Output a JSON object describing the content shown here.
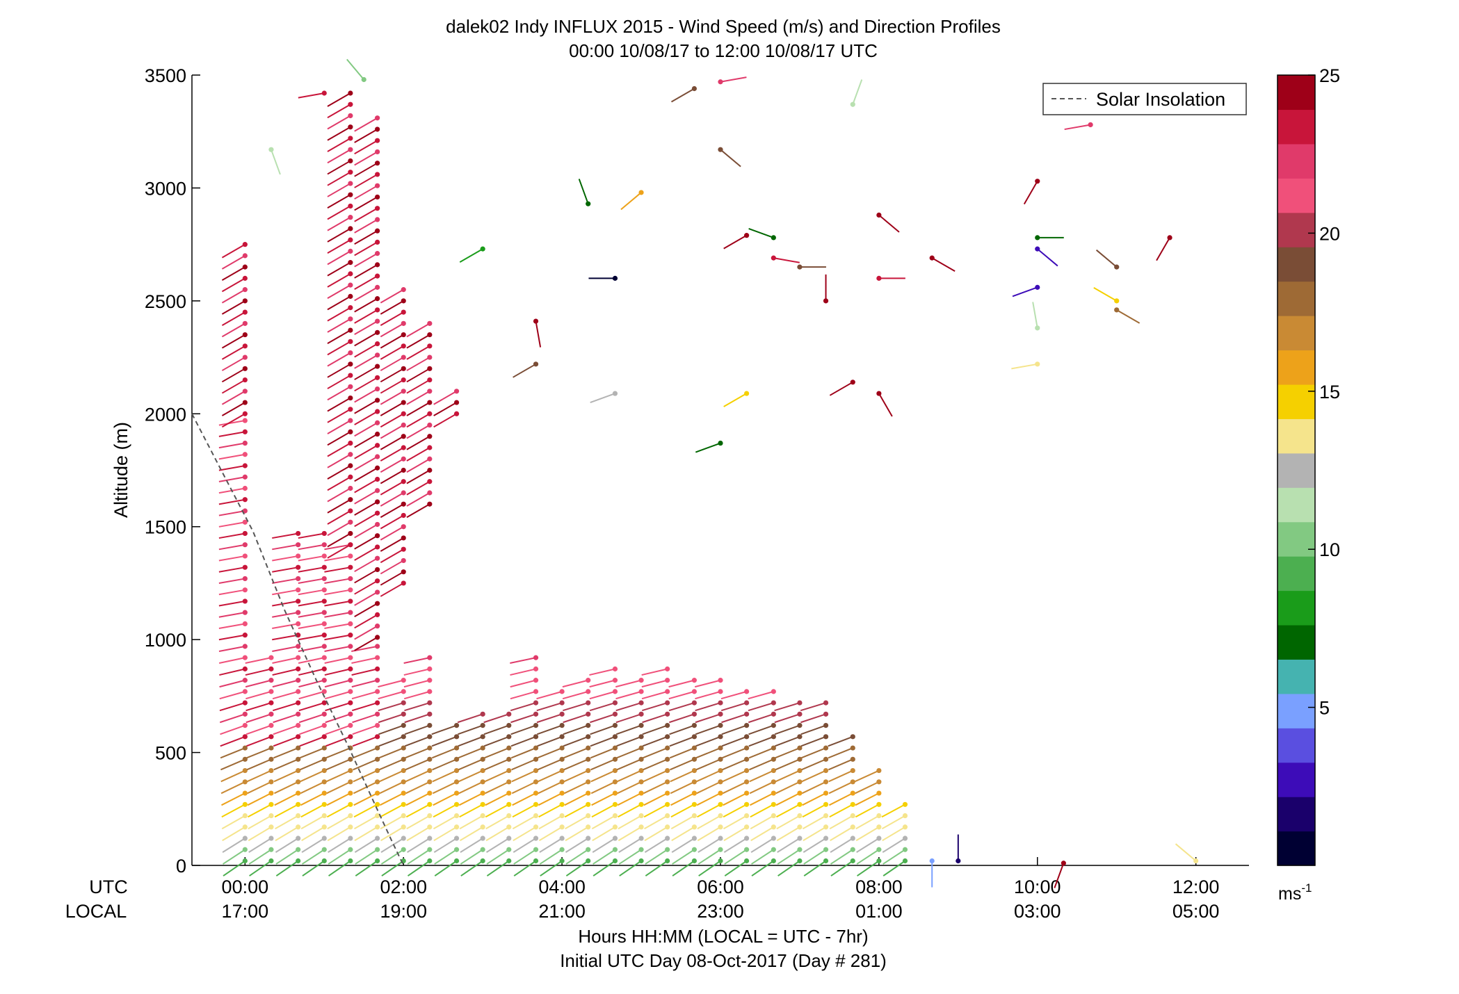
{
  "chart_data": {
    "type": "scatter",
    "title": "dalek02 Indy INFLUX 2015 - Wind Speed (m/s) and Direction Profiles",
    "subtitle": "00:00 10/08/17 to 12:00 10/08/17  UTC",
    "ylabel": "Altitude (m)",
    "xlabel": "Hours HH:MM  (LOCAL = UTC - 7hr)",
    "xlabel2": "Initial UTC Day 08-Oct-2017 (Day # 281)",
    "xlim": [
      -0.67,
      12.67
    ],
    "ylim": [
      0,
      3500
    ],
    "yticks": [
      0,
      500,
      1000,
      1500,
      2000,
      2500,
      3000,
      3500
    ],
    "xticks": [
      0,
      2,
      4,
      6,
      8,
      10,
      12
    ],
    "xtick_labels_utc": [
      "00:00",
      "02:00",
      "04:00",
      "06:00",
      "08:00",
      "10:00",
      "12:00"
    ],
    "xtick_labels_local": [
      "17:00",
      "19:00",
      "21:00",
      "23:00",
      "01:00",
      "03:00",
      "05:00"
    ],
    "row_label_utc": "UTC",
    "row_label_local": "LOCAL",
    "legend": {
      "entry": "Solar Insolation",
      "placement": "top-right"
    },
    "colorbar": {
      "range": [
        0,
        25
      ],
      "ticks": [
        5,
        10,
        15,
        20,
        25
      ],
      "unit_base": "ms",
      "unit_exp": "-1",
      "colors": [
        "#000033",
        "#1a006b",
        "#3d0cb8",
        "#5a4fe0",
        "#7aa0ff",
        "#45b3b0",
        "#006600",
        "#1a9c1a",
        "#4caf50",
        "#82c982",
        "#b8e0b0",
        "#b3b3b3",
        "#f5e48c",
        "#f5d000",
        "#eda21a",
        "#c98a34",
        "#9e6a35",
        "#7a4d36",
        "#b0384e",
        "#f0507a",
        "#e03a6a",
        "#c8153a",
        "#9e0018"
      ]
    },
    "solar_insolation": {
      "color": "#555555",
      "points": [
        [
          -0.67,
          2000
        ],
        [
          -0.3,
          1750
        ],
        [
          0.1,
          1480
        ],
        [
          0.5,
          1130
        ],
        [
          0.9,
          820
        ],
        [
          1.3,
          530
        ],
        [
          1.6,
          300
        ],
        [
          1.85,
          110
        ],
        [
          2.0,
          0
        ]
      ]
    },
    "profiles": [
      {
        "t": 0.0,
        "top": 2000,
        "step": 50,
        "band": "upper"
      },
      {
        "t": 0.33,
        "top": 930,
        "step": 50
      },
      {
        "t": 0.67,
        "top": 1470,
        "step": 50
      },
      {
        "t": 1.0,
        "top": 1470,
        "step": 50
      },
      {
        "t": 1.33,
        "top": 1420,
        "step": 50
      },
      {
        "t": 1.67,
        "top": 1010,
        "step": 50
      },
      {
        "t": 2.0,
        "top": 830,
        "step": 50
      },
      {
        "t": 2.33,
        "top": 960,
        "step": 50
      },
      {
        "t": 2.67,
        "top": 660,
        "step": 50
      },
      {
        "t": 3.0,
        "top": 690,
        "step": 50
      },
      {
        "t": 3.33,
        "top": 690,
        "step": 50
      },
      {
        "t": 3.67,
        "top": 930,
        "step": 50
      },
      {
        "t": 4.0,
        "top": 790,
        "step": 50
      },
      {
        "t": 4.33,
        "top": 860,
        "step": 50
      },
      {
        "t": 4.67,
        "top": 870,
        "step": 50
      },
      {
        "t": 5.0,
        "top": 860,
        "step": 50
      },
      {
        "t": 5.33,
        "top": 870,
        "step": 50
      },
      {
        "t": 5.67,
        "top": 860,
        "step": 50
      },
      {
        "t": 6.0,
        "top": 830,
        "step": 50
      },
      {
        "t": 6.33,
        "top": 810,
        "step": 50
      },
      {
        "t": 6.67,
        "top": 770,
        "step": 50
      },
      {
        "t": 7.0,
        "top": 750,
        "step": 50
      },
      {
        "t": 7.33,
        "top": 740,
        "step": 50
      },
      {
        "t": 7.67,
        "top": 610,
        "step": 50
      },
      {
        "t": 8.0,
        "top": 430,
        "step": 50
      },
      {
        "t": 8.33,
        "top": 280,
        "step": 50
      }
    ],
    "upper_profiles": [
      {
        "t": 0.0,
        "bottom": 2000,
        "top": 2780,
        "step": 50
      },
      {
        "t": 1.33,
        "bottom": 1420,
        "top": 3430,
        "step": 50
      },
      {
        "t": 1.67,
        "bottom": 1010,
        "top": 3320,
        "step": 50
      },
      {
        "t": 2.0,
        "bottom": 1250,
        "top": 2550,
        "step": 50
      },
      {
        "t": 2.33,
        "bottom": 1600,
        "top": 2400,
        "step": 50
      },
      {
        "t": 2.67,
        "bottom": 2000,
        "top": 2130,
        "step": 50
      }
    ],
    "scattered_barbs": [
      {
        "t": 0.33,
        "alt": 3170,
        "speed": 11.5,
        "dir": 160
      },
      {
        "t": 1.0,
        "alt": 3420,
        "speed": 23,
        "dir": 260
      },
      {
        "t": 1.5,
        "alt": 3480,
        "speed": 10,
        "dir": 320
      },
      {
        "t": 3.0,
        "alt": 2730,
        "speed": 8.5,
        "dir": 240
      },
      {
        "t": 3.67,
        "alt": 2410,
        "speed": 24,
        "dir": 170
      },
      {
        "t": 3.67,
        "alt": 2220,
        "speed": 19,
        "dir": 240
      },
      {
        "t": 4.33,
        "alt": 2930,
        "speed": 7,
        "dir": 340
      },
      {
        "t": 4.67,
        "alt": 2600,
        "speed": 1,
        "dir": 270
      },
      {
        "t": 4.67,
        "alt": 2090,
        "speed": 12.5,
        "dir": 250
      },
      {
        "t": 5.0,
        "alt": 2980,
        "speed": 15.5,
        "dir": 230
      },
      {
        "t": 5.67,
        "alt": 3440,
        "speed": 19.5,
        "dir": 240
      },
      {
        "t": 6.0,
        "alt": 3470,
        "speed": 22,
        "dir": 80
      },
      {
        "t": 6.0,
        "alt": 3170,
        "speed": 19,
        "dir": 130
      },
      {
        "t": 6.33,
        "alt": 2790,
        "speed": 24,
        "dir": 240
      },
      {
        "t": 6.33,
        "alt": 2090,
        "speed": 15,
        "dir": 240
      },
      {
        "t": 6.0,
        "alt": 1870,
        "speed": 7.5,
        "dir": 250
      },
      {
        "t": 6.67,
        "alt": 2780,
        "speed": 7.5,
        "dir": 290
      },
      {
        "t": 6.67,
        "alt": 2690,
        "speed": 23,
        "dir": 100
      },
      {
        "t": 7.0,
        "alt": 2650,
        "speed": 19,
        "dir": 90
      },
      {
        "t": 7.33,
        "alt": 2500,
        "speed": 24,
        "dir": 0
      },
      {
        "t": 7.67,
        "alt": 3370,
        "speed": 11,
        "dir": 20
      },
      {
        "t": 7.67,
        "alt": 2140,
        "speed": 24,
        "dir": 240
      },
      {
        "t": 8.0,
        "alt": 2880,
        "speed": 24,
        "dir": 130
      },
      {
        "t": 8.0,
        "alt": 2600,
        "speed": 23,
        "dir": 90
      },
      {
        "t": 8.0,
        "alt": 2090,
        "speed": 24,
        "dir": 150
      },
      {
        "t": 8.67,
        "alt": 2690,
        "speed": 24,
        "dir": 120
      },
      {
        "t": 10.0,
        "alt": 3030,
        "speed": 24,
        "dir": 210
      },
      {
        "t": 10.0,
        "alt": 2780,
        "speed": 7,
        "dir": 90
      },
      {
        "t": 10.0,
        "alt": 2730,
        "speed": 3,
        "dir": 130
      },
      {
        "t": 10.0,
        "alt": 2560,
        "speed": 3,
        "dir": 250
      },
      {
        "t": 10.0,
        "alt": 2380,
        "speed": 11,
        "dir": 350
      },
      {
        "t": 10.0,
        "alt": 2220,
        "speed": 14,
        "dir": 260
      },
      {
        "t": 10.67,
        "alt": 3280,
        "speed": 22.5,
        "dir": 260
      },
      {
        "t": 11.0,
        "alt": 2650,
        "speed": 18.5,
        "dir": 310
      },
      {
        "t": 11.0,
        "alt": 2500,
        "speed": 14.5,
        "dir": 300
      },
      {
        "t": 11.0,
        "alt": 2460,
        "speed": 17.5,
        "dir": 120
      },
      {
        "t": 11.67,
        "alt": 2780,
        "speed": 24,
        "dir": 210
      },
      {
        "t": 8.67,
        "alt": 20,
        "speed": 5,
        "dir": 180
      },
      {
        "t": 9.0,
        "alt": 20,
        "speed": 2,
        "dir": 0
      },
      {
        "t": 10.33,
        "alt": 10,
        "speed": 24,
        "dir": 200
      },
      {
        "t": 12.0,
        "alt": 20,
        "speed": 14,
        "dir": 310
      }
    ]
  }
}
